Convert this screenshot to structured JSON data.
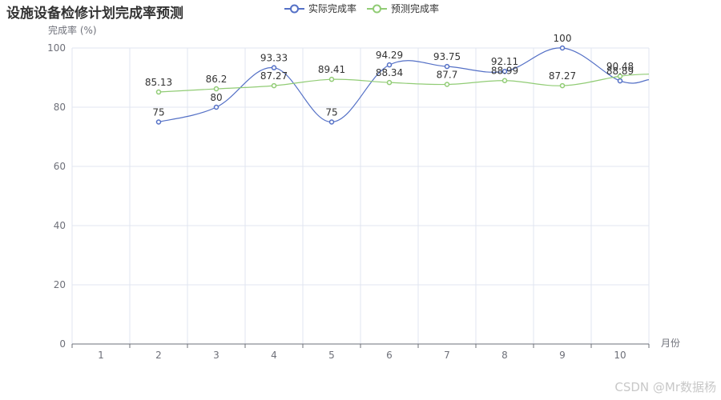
{
  "chart_data": {
    "type": "line",
    "title": "设施设备检修计划完成率预测",
    "ylabel": "完成率 (%)",
    "xlabel": "月份",
    "categories": [
      "1",
      "2",
      "3",
      "4",
      "5",
      "6",
      "7",
      "8",
      "9",
      "10"
    ],
    "ylim": [
      0,
      100
    ],
    "yticks": [
      0,
      20,
      40,
      60,
      80,
      100
    ],
    "grid": true,
    "legend_position": "top-center",
    "series": [
      {
        "name": "实际完成率",
        "color": "#5470c6",
        "x": [
          2,
          3,
          4,
          5,
          6,
          7,
          8,
          9,
          10,
          10.5
        ],
        "values": [
          75,
          80,
          93.33,
          75,
          94.29,
          93.75,
          92.11,
          100,
          88.89,
          89.3
        ]
      },
      {
        "name": "预测完成率",
        "color": "#91cc75",
        "x": [
          2,
          3,
          4,
          5,
          6,
          7,
          8,
          9,
          10,
          10.5
        ],
        "values": [
          85.13,
          86.2,
          87.27,
          89.41,
          88.34,
          87.7,
          88.99,
          87.27,
          90.48,
          91.2
        ]
      }
    ],
    "data_labels": {
      "实际完成率": [
        "75",
        "80",
        "93.33",
        "75",
        "94.29",
        "93.75",
        "92.11",
        "100",
        "88.89"
      ],
      "预测完成率": [
        "85.13",
        "86.2",
        "87.27",
        "89.41",
        "88.34",
        "87.7",
        "88.99",
        "87.27",
        "90.48"
      ]
    }
  },
  "watermark": "CSDN @Mr数据杨"
}
